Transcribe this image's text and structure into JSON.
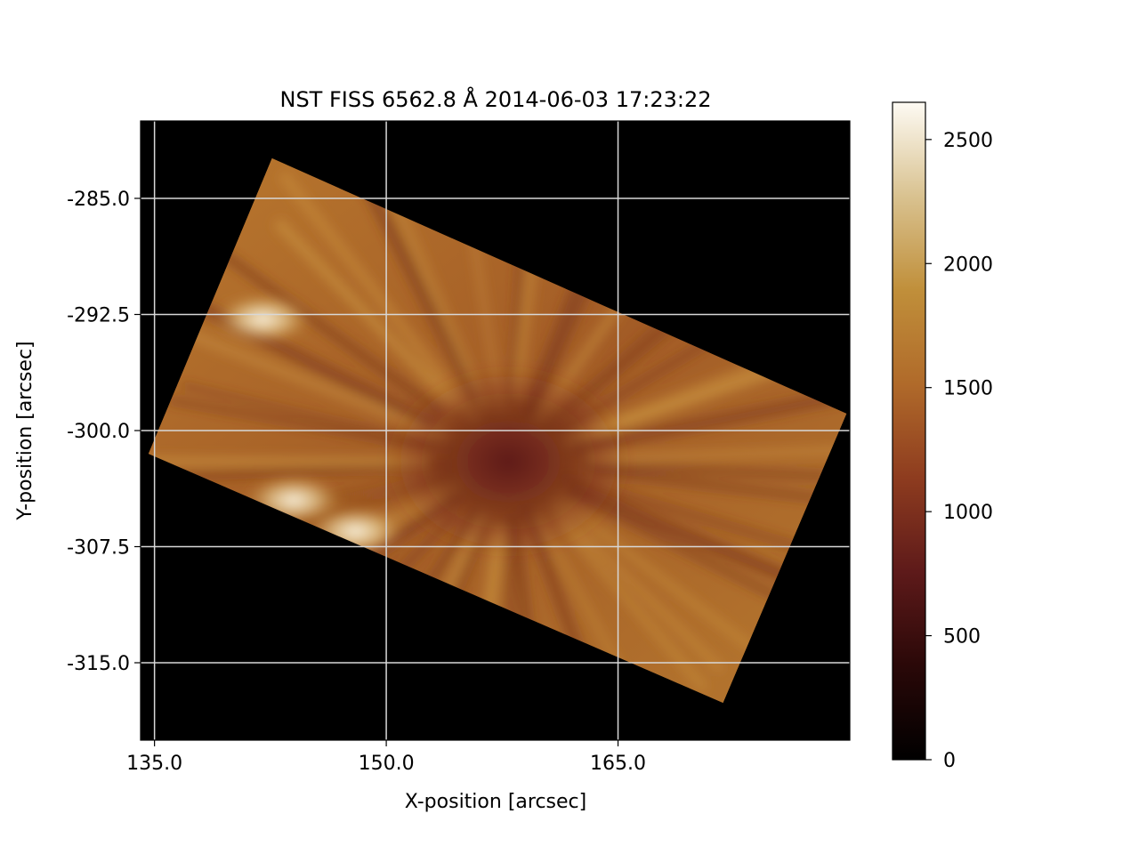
{
  "chart_data": {
    "type": "heatmap",
    "title": "NST FISS 6562.8 Å 2014-06-03 17:23:22",
    "xlabel": "X-position [arcsec]",
    "ylabel": "Y-position [arcsec]",
    "xlim": [
      134.1,
      180.0
    ],
    "ylim": [
      -320.0,
      -280.0
    ],
    "x_ticks": [
      135.0,
      150.0,
      165.0
    ],
    "x_tick_labels": [
      "135.0",
      "150.0",
      "165.0"
    ],
    "y_ticks": [
      -285.0,
      -292.5,
      -300.0,
      -307.5,
      -315.0
    ],
    "y_tick_labels": [
      "-285.0",
      "-292.5",
      "-300.0",
      "-307.5",
      "-315.0"
    ],
    "grid": true,
    "colorbar": {
      "range": [
        0,
        2650
      ],
      "ticks": [
        0,
        500,
        1000,
        1500,
        2000,
        2500
      ],
      "tick_labels": [
        "0",
        "500",
        "1000",
        "1500",
        "2000",
        "2500"
      ],
      "colors": [
        "#000000",
        "#2a0808",
        "#5e1a1a",
        "#8e3c1f",
        "#b06a2a",
        "#c08f3a",
        "#d9c290",
        "#fdfaf3"
      ]
    },
    "field_of_view_corners": [
      [
        142.6,
        -282.4
      ],
      [
        179.8,
        -298.9
      ],
      [
        171.8,
        -317.6
      ],
      [
        134.6,
        -301.5
      ]
    ],
    "background_value": 0,
    "features": [
      {
        "name": "dark-core",
        "x": 157.9,
        "y": -302.0,
        "value": 1100
      },
      {
        "name": "bright-region-upper",
        "x": 142.0,
        "y": -292.8,
        "value": 2550
      },
      {
        "name": "bright-region-lower",
        "x": 144.0,
        "y": -304.5,
        "value": 2400
      },
      {
        "name": "bright-region-bottom",
        "x": 148.0,
        "y": -306.5,
        "value": 2400
      }
    ]
  }
}
